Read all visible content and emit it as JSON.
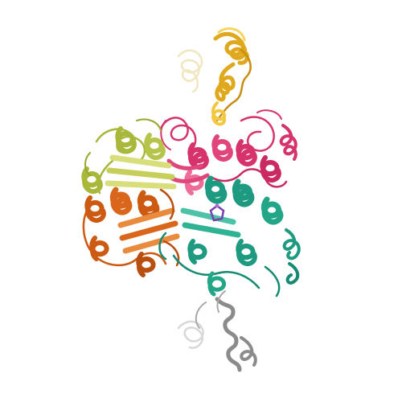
{
  "image": {
    "subject": "protein-structure-ribbon",
    "background_color": "#ffffff",
    "chains": [
      {
        "name": "chain-gold",
        "color": "#e0a81c",
        "highlight": "#f2c842"
      },
      {
        "name": "chain-crimson",
        "color": "#d6336c",
        "highlight": "#ee6d98"
      },
      {
        "name": "chain-olive",
        "color": "#a9b83a",
        "highlight": "#d8de7a"
      },
      {
        "name": "chain-orange",
        "color": "#cc5a12",
        "highlight": "#e98a3c"
      },
      {
        "name": "chain-teal",
        "color": "#1e9a80",
        "highlight": "#4cc3a6"
      },
      {
        "name": "chain-gray",
        "color": "#8b8b8b",
        "highlight": "#c9c9c9"
      },
      {
        "name": "ligand",
        "color": "#7a3fb0",
        "highlight": "#a46fd6"
      }
    ]
  }
}
